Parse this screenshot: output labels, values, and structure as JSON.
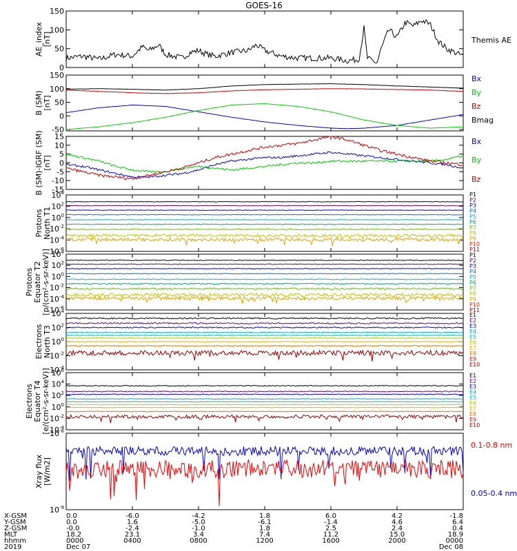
{
  "figure_title": "GOES-16",
  "chart_data": [
    {
      "type": "line",
      "panel": "ae",
      "ylabel": [
        "AE_index",
        "[nT]"
      ],
      "ylim": [
        0,
        150
      ],
      "yticks": [
        0,
        50,
        100,
        150
      ],
      "legend": [
        {
          "name": "Themis AE",
          "color": "#000000"
        }
      ],
      "series": [
        {
          "name": "Themis AE",
          "color": "#000000",
          "noise": 8,
          "x": [
            0,
            1,
            2,
            3,
            4,
            4.6,
            5,
            5.6,
            6,
            7,
            7.5,
            8,
            8.5,
            9,
            10,
            11,
            11.5,
            12,
            13,
            14,
            15,
            16,
            17,
            17.7,
            18,
            18.2,
            18.5,
            18.8,
            19,
            19.5,
            20,
            20.5,
            21,
            21.5,
            22,
            22.5,
            23,
            23.5,
            24
          ],
          "y": [
            25,
            30,
            22,
            35,
            30,
            55,
            45,
            60,
            35,
            25,
            40,
            45,
            35,
            30,
            40,
            45,
            60,
            45,
            30,
            25,
            25,
            25,
            18,
            22,
            105,
            25,
            18,
            12,
            45,
            100,
            80,
            120,
            110,
            125,
            115,
            70,
            50,
            40,
            30
          ]
        }
      ]
    },
    {
      "type": "line",
      "panel": "bsm",
      "ylabel": [
        "B (SM)",
        "[nT]"
      ],
      "ylim": [
        -55,
        150
      ],
      "yticks": [
        -50,
        0,
        50,
        100,
        150
      ],
      "legend": [
        {
          "name": "Bx",
          "color": "#0000cc"
        },
        {
          "name": "By",
          "color": "#00cc00"
        },
        {
          "name": "Bz",
          "color": "#cc0000"
        },
        {
          "name": "Bmag",
          "color": "#000000"
        }
      ],
      "series": [
        {
          "name": "Bx",
          "color": "#0000cc",
          "noise": 0.3,
          "x": [
            0,
            2,
            4,
            6,
            8,
            10,
            12,
            14,
            16,
            17,
            18,
            20,
            22,
            24
          ],
          "y": [
            12,
            30,
            40,
            35,
            15,
            -5,
            -22,
            -35,
            -45,
            -47,
            -45,
            -35,
            -15,
            5
          ]
        },
        {
          "name": "By",
          "color": "#00cc00",
          "noise": 0.3,
          "x": [
            0,
            2,
            4,
            6,
            8,
            10,
            12,
            14,
            16,
            18,
            20,
            22,
            24
          ],
          "y": [
            -50,
            -40,
            -25,
            -5,
            20,
            40,
            45,
            35,
            15,
            -15,
            -35,
            -45,
            -40
          ]
        },
        {
          "name": "Bz",
          "color": "#cc0000",
          "noise": 0.5,
          "x": [
            0,
            2,
            4,
            6,
            8,
            10,
            12,
            14,
            16,
            18,
            20,
            22,
            24
          ],
          "y": [
            95,
            90,
            85,
            82,
            85,
            92,
            96,
            98,
            100,
            99,
            97,
            95,
            90
          ]
        },
        {
          "name": "Bmag",
          "color": "#000000",
          "noise": 0.5,
          "x": [
            0,
            2,
            4,
            6,
            8,
            10,
            12,
            14,
            16,
            18,
            20,
            22,
            24
          ],
          "y": [
            98,
            100,
            98,
            95,
            100,
            110,
            115,
            117,
            118,
            115,
            110,
            106,
            102
          ]
        }
      ]
    },
    {
      "type": "line",
      "panel": "bigrf",
      "ylabel": [
        "B (SM)-IGRF (SM)",
        "[nT]"
      ],
      "ylim": [
        -15,
        15
      ],
      "yticks": [
        -15,
        -10,
        -5,
        0,
        5,
        10,
        15
      ],
      "legend": [
        {
          "name": "Bx",
          "color": "#0000cc"
        },
        {
          "name": "By",
          "color": "#00cc00"
        },
        {
          "name": "Bz",
          "color": "#cc0000"
        }
      ],
      "series": [
        {
          "name": "Bx",
          "color": "#0000cc",
          "noise": 0.6,
          "x": [
            0,
            1,
            2,
            3,
            4,
            5,
            6,
            7,
            8,
            9,
            10,
            11,
            12,
            13,
            14,
            15,
            16,
            17,
            18,
            19,
            20,
            21,
            22,
            23,
            24
          ],
          "y": [
            -1,
            -2,
            -4,
            -6,
            -8,
            -8,
            -7,
            -6,
            -4,
            -1,
            1,
            2,
            3,
            3,
            4,
            5,
            6,
            5,
            4,
            3,
            2,
            1,
            0,
            -1,
            -3
          ]
        },
        {
          "name": "By",
          "color": "#00cc00",
          "noise": 0.6,
          "x": [
            0,
            1,
            2,
            3,
            4,
            5,
            6,
            7,
            8,
            9,
            10,
            11,
            12,
            13,
            14,
            15,
            16,
            17,
            18,
            19,
            20,
            21,
            22,
            23,
            24
          ],
          "y": [
            5,
            3,
            1,
            -2,
            -4,
            -5,
            -5,
            -3,
            -2,
            -3,
            -4,
            -3,
            -2,
            -1,
            0,
            0,
            1,
            1,
            1,
            1,
            1,
            1,
            1,
            2,
            4
          ]
        },
        {
          "name": "Bz",
          "color": "#cc0000",
          "noise": 0.8,
          "x": [
            0,
            1,
            2,
            3,
            4,
            5,
            6,
            7,
            8,
            9,
            10,
            11,
            12,
            13,
            14,
            15,
            16,
            17,
            18,
            19,
            20,
            21,
            22,
            23,
            24
          ],
          "y": [
            -3,
            -5,
            -7,
            -8,
            -9,
            -7,
            -5,
            -3,
            0,
            3,
            5,
            7,
            9,
            10,
            11,
            13,
            15,
            13,
            10,
            7,
            5,
            3,
            1,
            0,
            -1
          ]
        }
      ]
    },
    {
      "type": "line",
      "panel": "protons_t1",
      "log": true,
      "ylabel": [
        "Protons",
        "North T1"
      ],
      "ylim": [
        -6,
        4
      ],
      "ytick_exps": [
        -6,
        -4,
        -2,
        0,
        2,
        4
      ],
      "legend": [
        {
          "name": "P1",
          "color": "#000000"
        },
        {
          "name": "P2",
          "color": "#6a006a"
        },
        {
          "name": "P3",
          "color": "#0000cc"
        },
        {
          "name": "P4",
          "color": "#0070d0"
        },
        {
          "name": "P5",
          "color": "#00b0c8"
        },
        {
          "name": "P6",
          "color": "#00aa66"
        },
        {
          "name": "P7",
          "color": "#66c000"
        },
        {
          "name": "P8",
          "color": "#b8c800"
        },
        {
          "name": "P9",
          "color": "#e8a000"
        },
        {
          "name": "P10",
          "color": "#dd2200"
        },
        {
          "name": "P11",
          "color": "#b00000"
        }
      ],
      "series": [
        {
          "name": "P1",
          "color": "#000000",
          "level": 2.8,
          "noise": 0.05
        },
        {
          "name": "P2",
          "color": "#6a006a",
          "level": 2.1,
          "noise": 0.05
        },
        {
          "name": "P3",
          "color": "#0000cc",
          "level": 1.3,
          "noise": 0.05
        },
        {
          "name": "P4",
          "color": "#0070d0",
          "level": 0.5,
          "noise": 0.05
        },
        {
          "name": "P5",
          "color": "#00b0c8",
          "level": -0.4,
          "noise": 0.06
        },
        {
          "name": "P6",
          "color": "#00aa66",
          "level": -1.2,
          "noise": 0.06
        },
        {
          "name": "P7",
          "color": "#66c000",
          "level": -2.1,
          "noise": 0.1
        },
        {
          "name": "P8",
          "color": "#b8c800",
          "level": -3.2,
          "noise": 0.25
        },
        {
          "name": "P9",
          "color": "#e8a000",
          "level": -3.9,
          "noise": 0.3
        }
      ]
    },
    {
      "type": "line",
      "panel": "protons_t2",
      "log": true,
      "ylabel": [
        "Protons",
        "Equator T2",
        "[p/(cm²-s-sr-keV)]"
      ],
      "ylim": [
        -6,
        4
      ],
      "ytick_exps": [
        -6,
        -4,
        -2,
        0,
        2,
        4
      ],
      "legend": [
        {
          "name": "P1",
          "color": "#000000"
        },
        {
          "name": "P2",
          "color": "#6a006a"
        },
        {
          "name": "P3",
          "color": "#0000cc"
        },
        {
          "name": "P4",
          "color": "#0070d0"
        },
        {
          "name": "P5",
          "color": "#00b0c8"
        },
        {
          "name": "P6",
          "color": "#00aa66"
        },
        {
          "name": "P7",
          "color": "#66c000"
        },
        {
          "name": "P8",
          "color": "#b8c800"
        },
        {
          "name": "P9",
          "color": "#e8a000"
        },
        {
          "name": "P10",
          "color": "#dd2200"
        },
        {
          "name": "P11",
          "color": "#b00000"
        }
      ],
      "series": [
        {
          "name": "P1",
          "color": "#000000",
          "level": 2.9,
          "noise": 0.06
        },
        {
          "name": "P2",
          "color": "#6a006a",
          "level": 2.2,
          "noise": 0.06
        },
        {
          "name": "P3",
          "color": "#0000cc",
          "level": 1.4,
          "noise": 0.06
        },
        {
          "name": "P4",
          "color": "#0070d0",
          "level": 0.5,
          "noise": 0.06
        },
        {
          "name": "P5",
          "color": "#00b0c8",
          "level": -0.5,
          "noise": 0.08
        },
        {
          "name": "P6",
          "color": "#00aa66",
          "level": -1.3,
          "noise": 0.1
        },
        {
          "name": "P7",
          "color": "#66c000",
          "level": -2.2,
          "noise": 0.15
        },
        {
          "name": "P8",
          "color": "#b8c800",
          "level": -3.3,
          "noise": 0.3
        },
        {
          "name": "P9",
          "color": "#e8a000",
          "level": -3.9,
          "noise": 0.3
        }
      ]
    },
    {
      "type": "line",
      "panel": "electrons_t3",
      "log": true,
      "ylabel": [
        "Electrons",
        "North T3"
      ],
      "ylim": [
        -4,
        4
      ],
      "ytick_exps": [
        -4,
        -2,
        0,
        2,
        4
      ],
      "legend": [
        {
          "name": "E1",
          "color": "#000000"
        },
        {
          "name": "E2",
          "color": "#6a006a"
        },
        {
          "name": "E3",
          "color": "#0000cc"
        },
        {
          "name": "E4",
          "color": "#00a0d0"
        },
        {
          "name": "E5",
          "color": "#00c0b0"
        },
        {
          "name": "E6",
          "color": "#a0d000"
        },
        {
          "name": "E7",
          "color": "#e0b000"
        },
        {
          "name": "E8",
          "color": "#e07000"
        },
        {
          "name": "E9",
          "color": "#cc1100"
        },
        {
          "name": "E10",
          "color": "#990000"
        }
      ],
      "series": [
        {
          "name": "E1",
          "color": "#000000",
          "level": 3.3,
          "noise": 0.1
        },
        {
          "name": "E2",
          "color": "#6a006a",
          "level": 2.6,
          "noise": 0.1
        },
        {
          "name": "E3",
          "color": "#0000cc",
          "level": 2.0,
          "noise": 0.08
        },
        {
          "name": "E4",
          "color": "#00a0d0",
          "level": 1.3,
          "noise": 0.05
        },
        {
          "name": "E5",
          "color": "#00c0b0",
          "level": 0.9,
          "noise": 0.05
        },
        {
          "name": "E6",
          "color": "#a0d000",
          "level": 0.5,
          "noise": 0.05
        },
        {
          "name": "E7",
          "color": "#e0b000",
          "level": 0.0,
          "noise": 0.05
        },
        {
          "name": "E8",
          "color": "#e07000",
          "level": -0.6,
          "noise": 0.06
        },
        {
          "name": "E9",
          "color": "#990000",
          "level": -1.6,
          "noise": 0.35
        }
      ]
    },
    {
      "type": "line",
      "panel": "electrons_t4",
      "log": true,
      "ylabel": [
        "Electrons",
        "Equator T4",
        "[e/(cm²-s-sr-keV)]"
      ],
      "ylim": [
        -4,
        6
      ],
      "ytick_exps": [
        -4,
        -2,
        0,
        2,
        4,
        6
      ],
      "legend": [
        {
          "name": "E1",
          "color": "#000000"
        },
        {
          "name": "E2",
          "color": "#6a006a"
        },
        {
          "name": "E3",
          "color": "#0000cc"
        },
        {
          "name": "E4",
          "color": "#00a0d0"
        },
        {
          "name": "E5",
          "color": "#00c0b0"
        },
        {
          "name": "E6",
          "color": "#a0d000"
        },
        {
          "name": "E7",
          "color": "#e0b000"
        },
        {
          "name": "E8",
          "color": "#e07000"
        },
        {
          "name": "E9",
          "color": "#cc1100"
        },
        {
          "name": "E10",
          "color": "#990000"
        }
      ],
      "series": [
        {
          "name": "E1",
          "color": "#000000",
          "level": 3.7,
          "noise": 0.08
        },
        {
          "name": "E2",
          "color": "#6a006a",
          "level": 2.7,
          "noise": 0.08
        },
        {
          "name": "E3",
          "color": "#0000cc",
          "level": 2.2,
          "noise": 0.07
        },
        {
          "name": "E4",
          "color": "#00a0d0",
          "level": 1.4,
          "noise": 0.05
        },
        {
          "name": "E5",
          "color": "#00c0b0",
          "level": 0.9,
          "noise": 0.05
        },
        {
          "name": "E6",
          "color": "#a0d000",
          "level": 0.4,
          "noise": 0.05
        },
        {
          "name": "E7",
          "color": "#e0b000",
          "level": -0.1,
          "noise": 0.05
        },
        {
          "name": "E8",
          "color": "#e07000",
          "level": -0.8,
          "noise": 0.06
        },
        {
          "name": "E9",
          "color": "#990000",
          "level": -1.7,
          "noise": 0.3
        }
      ]
    },
    {
      "type": "line",
      "panel": "xray",
      "log": true,
      "ylabel": [
        "Xray flux",
        "[W/m2]"
      ],
      "ylim": [
        -9,
        -6
      ],
      "ytick_exps": [
        -9,
        -6
      ],
      "legend": [
        {
          "name": "0.1-0.8 nm",
          "color": "#ee0000"
        },
        {
          "name": "0.05-0.4 nm",
          "color": "#0000cc"
        }
      ],
      "series": [
        {
          "name": "0.05-0.4 nm",
          "color": "#0000cc",
          "level": -6.7,
          "noise": 0.18
        },
        {
          "name": "0.1-0.8 nm",
          "color": "#ee0000",
          "level": -7.4,
          "noise": 0.35
        }
      ]
    }
  ],
  "x_axis": {
    "xlim": [
      0,
      24
    ],
    "tick_hours": [
      0,
      4,
      8,
      12,
      16,
      20,
      24
    ],
    "rows": [
      {
        "label": "X-GSM",
        "values": [
          "0.0",
          "-6.0",
          "-4.2",
          "1.8",
          "6.0",
          "4.2",
          "-1.8"
        ]
      },
      {
        "label": "Y-GSM",
        "values": [
          "0.0",
          "1.6",
          "-5.0",
          "-6.1",
          "-1.4",
          "4.6",
          "6.4"
        ]
      },
      {
        "label": "Z-GSM",
        "values": [
          "-0.0",
          "-2.4",
          "-1.0",
          "1.8",
          "2.5",
          "2.4",
          "0.4"
        ]
      },
      {
        "label": "MLT",
        "values": [
          "18.2",
          "23.1",
          "3.4",
          "7.4",
          "11.2",
          "15.0",
          "18.9"
        ]
      },
      {
        "label": "hhmm",
        "values": [
          "0000",
          "0400",
          "0800",
          "1200",
          "1600",
          "2000",
          "0000"
        ]
      }
    ],
    "year": "2019",
    "start_date": "Dec 07",
    "end_date": "Dec 08"
  }
}
